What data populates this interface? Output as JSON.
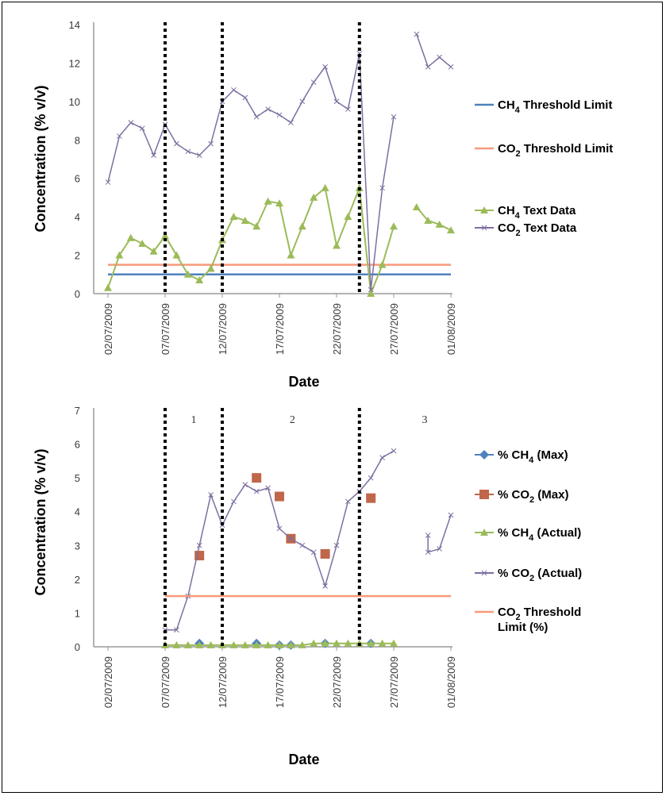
{
  "colors": {
    "ch4_threshold": "#4f81bd",
    "co2_threshold": "#f79a7a",
    "ch4_data": "#9bbb59",
    "co2_data": "#7d6fa0",
    "ch4_max": "#4f81bd",
    "co2_max": "#c0664a",
    "divider": "#000000"
  },
  "chart_data": [
    {
      "type": "line",
      "xlabel": "Date",
      "ylabel": "Concentration (% v/v)",
      "ylim": [
        0,
        14
      ],
      "yticks": [
        "0",
        "2",
        "4",
        "6",
        "8",
        "10",
        "12",
        "14"
      ],
      "xlim": [
        "02/07/2009",
        "01/08/2009"
      ],
      "xtick_labels": [
        "02/07/2009",
        "07/07/2009",
        "12/07/2009",
        "17/07/2009",
        "22/07/2009",
        "27/07/2009",
        "01/08/2009"
      ],
      "legend_position": "right",
      "series": [
        {
          "name": "CH₄ Threshold Limit",
          "legend": [
            "CH",
            "4",
            " Threshold Limit"
          ],
          "color_key": "ch4_threshold",
          "marker": "none",
          "x": [
            "02/07/2009",
            "01/08/2009"
          ],
          "values": [
            1,
            1
          ]
        },
        {
          "name": "CO₂ Threshold Limit",
          "legend": [
            "CO",
            "2",
            " Threshold Limit"
          ],
          "color_key": "co2_threshold",
          "marker": "none",
          "x": [
            "02/07/2009",
            "01/08/2009"
          ],
          "values": [
            1.5,
            1.5
          ]
        },
        {
          "name": "CH₄ Text Data",
          "legend": [
            "CH",
            "4",
            " Text Data"
          ],
          "color_key": "ch4_data",
          "marker": "triangle",
          "segments": [
            {
              "x": [
                "02/07/2009",
                "03/07/2009",
                "04/07/2009",
                "05/07/2009",
                "06/07/2009",
                "07/07/2009",
                "08/07/2009",
                "09/07/2009",
                "10/07/2009",
                "11/07/2009",
                "12/07/2009",
                "13/07/2009",
                "14/07/2009",
                "15/07/2009",
                "16/07/2009",
                "17/07/2009",
                "18/07/2009",
                "19/07/2009",
                "20/07/2009",
                "21/07/2009",
                "22/07/2009",
                "23/07/2009",
                "24/07/2009",
                "25/07/2009",
                "26/07/2009",
                "27/07/2009"
              ],
              "values": [
                0.3,
                2.0,
                2.9,
                2.6,
                2.2,
                3.0,
                2.0,
                1.0,
                0.7,
                1.3,
                2.8,
                4.0,
                3.8,
                3.5,
                4.8,
                4.7,
                2.0,
                3.5,
                5.0,
                5.5,
                2.5,
                4.0,
                5.5,
                0.0,
                1.5,
                3.5
              ]
            },
            {
              "x": [
                "29/07/2009",
                "30/07/2009",
                "31/07/2009",
                "01/08/2009"
              ],
              "values": [
                4.5,
                3.8,
                3.6,
                3.3
              ]
            }
          ]
        },
        {
          "name": "CO₂ Text Data",
          "legend": [
            "CO",
            "2",
            " Text Data"
          ],
          "color_key": "co2_data",
          "marker": "x",
          "segments": [
            {
              "x": [
                "02/07/2009",
                "03/07/2009",
                "04/07/2009",
                "05/07/2009",
                "06/07/2009",
                "07/07/2009",
                "08/07/2009",
                "09/07/2009",
                "10/07/2009",
                "11/07/2009",
                "12/07/2009",
                "13/07/2009",
                "14/07/2009",
                "15/07/2009",
                "16/07/2009",
                "17/07/2009",
                "18/07/2009",
                "19/07/2009",
                "20/07/2009",
                "21/07/2009",
                "22/07/2009",
                "23/07/2009",
                "24/07/2009",
                "25/07/2009",
                "26/07/2009",
                "27/07/2009"
              ],
              "values": [
                5.8,
                8.2,
                8.9,
                8.6,
                7.2,
                8.8,
                7.8,
                7.4,
                7.2,
                7.8,
                10.0,
                10.6,
                10.2,
                9.2,
                9.6,
                9.3,
                8.9,
                10.0,
                11.0,
                11.8,
                10.0,
                9.6,
                12.5,
                0.2,
                5.5,
                9.2
              ]
            },
            {
              "x": [
                "29/07/2009",
                "30/07/2009",
                "31/07/2009",
                "01/08/2009"
              ],
              "values": [
                13.5,
                11.8,
                12.3,
                11.8
              ]
            }
          ]
        }
      ],
      "dividers": [
        "07/07/2009",
        "12/07/2009",
        "24/07/2009"
      ]
    },
    {
      "type": "line",
      "xlabel": "Date",
      "ylabel": "Concentration (% v/v)",
      "ylim": [
        0,
        7
      ],
      "yticks": [
        "0",
        "1",
        "2",
        "3",
        "4",
        "5",
        "6",
        "7"
      ],
      "xlim": [
        "02/07/2009",
        "01/08/2009"
      ],
      "xtick_labels": [
        "02/07/2009",
        "07/07/2009",
        "12/07/2009",
        "17/07/2009",
        "22/07/2009",
        "27/07/2009",
        "01/08/2009"
      ],
      "period_labels": [
        "1",
        "2",
        "3"
      ],
      "legend_position": "right",
      "series": [
        {
          "name": "% CH₄ (Max)",
          "legend": [
            "% CH",
            "4",
            " (Max)"
          ],
          "color_key": "ch4_max",
          "marker": "diamond",
          "x": [
            "10/07/2009",
            "15/07/2009",
            "17/07/2009",
            "18/07/2009",
            "21/07/2009",
            "25/07/2009"
          ],
          "values": [
            0.1,
            0.1,
            0.05,
            0.05,
            0.1,
            0.1
          ]
        },
        {
          "name": "% CO₂ (Max)",
          "legend": [
            "% CO",
            "2",
            " (Max)"
          ],
          "color_key": "co2_max",
          "marker": "square",
          "x": [
            "10/07/2009",
            "15/07/2009",
            "17/07/2009",
            "18/07/2009",
            "21/07/2009",
            "25/07/2009"
          ],
          "values": [
            2.7,
            5.0,
            4.45,
            3.2,
            2.75,
            4.4
          ]
        },
        {
          "name": "% CH₄ (Actual)",
          "legend": [
            "% CH",
            "4",
            " (Actual)"
          ],
          "color_key": "ch4_data",
          "marker": "triangle",
          "x": [
            "07/07/2009",
            "08/07/2009",
            "09/07/2009",
            "10/07/2009",
            "11/07/2009",
            "12/07/2009",
            "13/07/2009",
            "14/07/2009",
            "15/07/2009",
            "16/07/2009",
            "17/07/2009",
            "18/07/2009",
            "19/07/2009",
            "20/07/2009",
            "21/07/2009",
            "22/07/2009",
            "23/07/2009",
            "24/07/2009",
            "25/07/2009",
            "26/07/2009",
            "27/07/2009"
          ],
          "values": [
            0.05,
            0.05,
            0.05,
            0.05,
            0.05,
            0.05,
            0.05,
            0.05,
            0.05,
            0.05,
            0.05,
            0.05,
            0.05,
            0.1,
            0.1,
            0.1,
            0.1,
            0.1,
            0.1,
            0.1,
            0.1
          ]
        },
        {
          "name": "% CO₂ (Actual)",
          "legend": [
            "% CO",
            "2",
            " (Actual)"
          ],
          "color_key": "co2_data",
          "marker": "x",
          "segments": [
            {
              "x": [
                "07/07/2009",
                "08/07/2009",
                "09/07/2009",
                "10/07/2009",
                "11/07/2009",
                "12/07/2009",
                "13/07/2009",
                "14/07/2009",
                "15/07/2009",
                "16/07/2009",
                "17/07/2009",
                "18/07/2009",
                "19/07/2009",
                "20/07/2009",
                "21/07/2009",
                "22/07/2009",
                "23/07/2009",
                "24/07/2009",
                "25/07/2009",
                "26/07/2009",
                "27/07/2009"
              ],
              "values": [
                0.5,
                0.5,
                1.5,
                3.0,
                4.5,
                3.6,
                4.3,
                4.8,
                4.6,
                4.7,
                3.5,
                3.2,
                3.0,
                2.8,
                1.8,
                3.0,
                4.3,
                4.6,
                5.0,
                5.6,
                5.8
              ]
            },
            {
              "x": [
                "30/07/2009",
                "30/07/2009",
                "31/07/2009",
                "01/08/2009"
              ],
              "values": [
                3.3,
                2.8,
                2.9,
                3.9
              ]
            }
          ]
        },
        {
          "name": "CO₂ Threshold Limit (%)",
          "legend": [
            "CO",
            "2",
            " Threshold",
            "Limit (%)"
          ],
          "color_key": "co2_threshold",
          "marker": "none",
          "x": [
            "07/07/2009",
            "01/08/2009"
          ],
          "values": [
            1.5,
            1.5
          ]
        }
      ],
      "dividers": [
        "07/07/2009",
        "12/07/2009",
        "24/07/2009"
      ]
    }
  ]
}
